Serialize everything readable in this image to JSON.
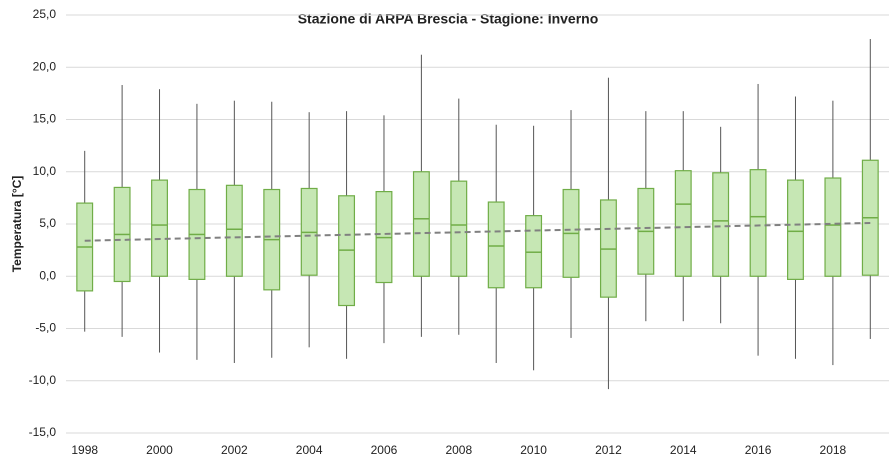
{
  "chart_data": {
    "type": "box",
    "title": "Stazione di ARPA Brescia - Stagione: Inverno",
    "ylabel": "Temperatura [°C]",
    "categories": [
      "1998",
      null,
      "2000",
      null,
      "2002",
      null,
      "2004",
      null,
      "2006",
      null,
      "2008",
      null,
      "2010",
      null,
      "2012",
      null,
      "2014",
      null,
      "2016",
      null,
      "2018",
      null
    ],
    "min": [
      -5.3,
      -5.8,
      -7.3,
      -8.0,
      -8.3,
      -7.8,
      -6.8,
      -7.9,
      -6.4,
      -5.8,
      -5.6,
      -8.3,
      -9.0,
      -5.9,
      -10.8,
      -4.3,
      -4.3,
      -4.5,
      -7.6,
      -7.9,
      -8.5,
      -6.0
    ],
    "q1": [
      -1.4,
      -0.5,
      0.0,
      -0.3,
      0.0,
      -1.3,
      0.1,
      -2.8,
      -0.6,
      0.0,
      0.0,
      -1.1,
      -1.1,
      -0.1,
      -2.0,
      0.2,
      0.0,
      0.0,
      0.0,
      -0.3,
      0.0,
      0.1
    ],
    "median": [
      2.8,
      4.0,
      4.9,
      4.0,
      4.5,
      3.5,
      4.2,
      2.5,
      3.7,
      5.5,
      4.9,
      2.9,
      2.3,
      4.1,
      2.6,
      4.3,
      6.9,
      5.3,
      5.7,
      4.3,
      4.9,
      5.6
    ],
    "q3": [
      7.0,
      8.5,
      9.2,
      8.3,
      8.7,
      8.3,
      8.4,
      7.7,
      8.1,
      10.0,
      9.1,
      7.1,
      5.8,
      8.3,
      7.3,
      8.4,
      10.1,
      9.9,
      10.2,
      9.2,
      9.4,
      11.1
    ],
    "max": [
      12.0,
      18.3,
      17.9,
      16.5,
      16.8,
      16.7,
      15.7,
      15.8,
      15.4,
      21.2,
      17.0,
      14.5,
      14.4,
      15.9,
      19.0,
      15.8,
      15.8,
      14.3,
      18.4,
      17.2,
      16.8,
      22.7
    ],
    "trend": {
      "values": [
        3.4,
        5.1
      ],
      "color": "#808080"
    },
    "color": "#c6e7b4",
    "edge_color": "#70ad47",
    "ylim": [
      -15,
      25
    ],
    "yticks": [
      {
        "value": -15,
        "label": "-15,0"
      },
      {
        "value": -10,
        "label": "-10,0"
      },
      {
        "value": -5,
        "label": "-5,0"
      },
      {
        "value": 0,
        "label": "0,0"
      },
      {
        "value": 5,
        "label": "5,0"
      },
      {
        "value": 10,
        "label": "10,0"
      },
      {
        "value": 15,
        "label": "15,0"
      },
      {
        "value": 20,
        "label": "20,0"
      },
      {
        "value": 25,
        "label": "25,0"
      }
    ],
    "grid": true
  }
}
